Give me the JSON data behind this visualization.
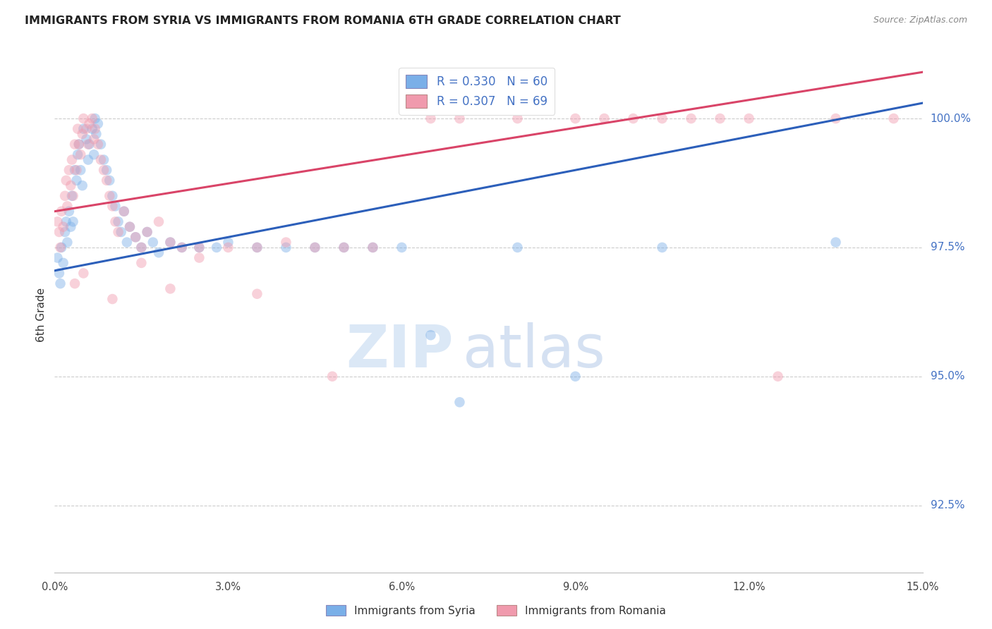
{
  "title": "IMMIGRANTS FROM SYRIA VS IMMIGRANTS FROM ROMANIA 6TH GRADE CORRELATION CHART",
  "source": "Source: ZipAtlas.com",
  "ylabel": "6th Grade",
  "ylabel_right_labels": [
    100.0,
    97.5,
    95.0,
    92.5
  ],
  "xlim": [
    0.0,
    15.0
  ],
  "ylim": [
    91.2,
    101.2
  ],
  "legend_blue_R": "R = 0.330",
  "legend_blue_N": "N = 60",
  "legend_pink_R": "R = 0.307",
  "legend_pink_N": "N = 69",
  "legend_blue_label": "Immigrants from Syria",
  "legend_pink_label": "Immigrants from Romania",
  "watermark_zip": "ZIP",
  "watermark_atlas": "atlas",
  "blue_line_x0": 0.0,
  "blue_line_y0": 97.05,
  "blue_line_x1": 15.0,
  "blue_line_y1": 100.3,
  "pink_line_x0": 0.0,
  "pink_line_y0": 98.2,
  "pink_line_x1": 15.0,
  "pink_line_y1": 100.9,
  "blue_scatter_x": [
    0.05,
    0.08,
    0.1,
    0.12,
    0.15,
    0.18,
    0.2,
    0.22,
    0.25,
    0.28,
    0.3,
    0.32,
    0.35,
    0.38,
    0.4,
    0.42,
    0.45,
    0.48,
    0.5,
    0.55,
    0.58,
    0.6,
    0.65,
    0.68,
    0.7,
    0.72,
    0.75,
    0.8,
    0.85,
    0.9,
    0.95,
    1.0,
    1.05,
    1.1,
    1.15,
    1.2,
    1.25,
    1.3,
    1.4,
    1.5,
    1.6,
    1.7,
    1.8,
    2.0,
    2.2,
    2.5,
    2.8,
    3.0,
    3.5,
    4.0,
    4.5,
    5.0,
    5.5,
    6.0,
    6.5,
    7.0,
    8.0,
    9.0,
    10.5,
    13.5
  ],
  "blue_scatter_y": [
    97.3,
    97.0,
    96.8,
    97.5,
    97.2,
    97.8,
    98.0,
    97.6,
    98.2,
    97.9,
    98.5,
    98.0,
    99.0,
    98.8,
    99.3,
    99.5,
    99.0,
    98.7,
    99.8,
    99.6,
    99.2,
    99.5,
    99.8,
    99.3,
    100.0,
    99.7,
    99.9,
    99.5,
    99.2,
    99.0,
    98.8,
    98.5,
    98.3,
    98.0,
    97.8,
    98.2,
    97.6,
    97.9,
    97.7,
    97.5,
    97.8,
    97.6,
    97.4,
    97.6,
    97.5,
    97.5,
    97.5,
    97.6,
    97.5,
    97.5,
    97.5,
    97.5,
    97.5,
    97.5,
    95.8,
    94.5,
    97.5,
    95.0,
    97.5,
    97.6
  ],
  "pink_scatter_x": [
    0.05,
    0.08,
    0.1,
    0.12,
    0.15,
    0.18,
    0.2,
    0.22,
    0.25,
    0.28,
    0.3,
    0.32,
    0.35,
    0.38,
    0.4,
    0.42,
    0.45,
    0.48,
    0.5,
    0.55,
    0.58,
    0.6,
    0.65,
    0.68,
    0.7,
    0.75,
    0.8,
    0.85,
    0.9,
    0.95,
    1.0,
    1.05,
    1.1,
    1.2,
    1.3,
    1.4,
    1.5,
    1.6,
    1.8,
    2.0,
    2.2,
    2.5,
    3.0,
    3.5,
    4.0,
    4.5,
    5.0,
    5.5,
    6.5,
    7.0,
    8.0,
    9.0,
    9.5,
    10.0,
    10.5,
    11.0,
    11.5,
    12.0,
    13.5,
    14.5,
    0.35,
    0.5,
    1.0,
    1.5,
    2.0,
    2.5,
    3.5,
    4.8,
    12.5
  ],
  "pink_scatter_y": [
    98.0,
    97.8,
    97.5,
    98.2,
    97.9,
    98.5,
    98.8,
    98.3,
    99.0,
    98.7,
    99.2,
    98.5,
    99.5,
    99.0,
    99.8,
    99.5,
    99.3,
    99.7,
    100.0,
    99.8,
    99.5,
    99.9,
    100.0,
    99.6,
    99.8,
    99.5,
    99.2,
    99.0,
    98.8,
    98.5,
    98.3,
    98.0,
    97.8,
    98.2,
    97.9,
    97.7,
    97.5,
    97.8,
    98.0,
    97.6,
    97.5,
    97.5,
    97.5,
    97.5,
    97.6,
    97.5,
    97.5,
    97.5,
    100.0,
    100.0,
    100.0,
    100.0,
    100.0,
    100.0,
    100.0,
    100.0,
    100.0,
    100.0,
    100.0,
    100.0,
    96.8,
    97.0,
    96.5,
    97.2,
    96.7,
    97.3,
    96.6,
    95.0,
    95.0
  ],
  "scatter_size": 110,
  "scatter_alpha": 0.45,
  "blue_color": "#7aafe8",
  "blue_line_color": "#2c5fba",
  "pink_color": "#f09aad",
  "pink_line_color": "#d94468",
  "grid_color": "#cccccc",
  "right_axis_color": "#4472c4",
  "background_color": "#ffffff"
}
